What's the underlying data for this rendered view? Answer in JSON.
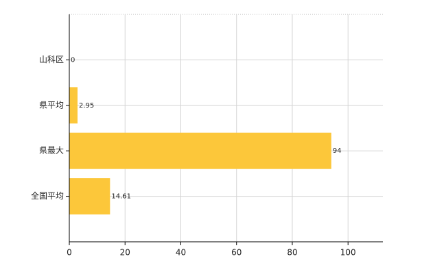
{
  "chart_data": {
    "type": "bar",
    "orientation": "horizontal",
    "categories": [
      "山科区",
      "県平均",
      "県最大",
      "全国平均"
    ],
    "values": [
      0,
      2.95,
      94,
      14.61
    ],
    "color": "#fcc73a",
    "xlim": [
      0,
      112.5
    ],
    "xticks": [
      0,
      20,
      40,
      60,
      80,
      100
    ],
    "grid": true
  }
}
